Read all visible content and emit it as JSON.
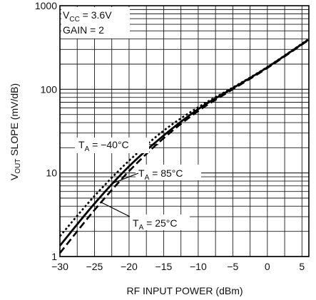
{
  "chart_data": {
    "type": "line",
    "title": "",
    "xlabel": "RF INPUT POWER (dBm)",
    "ylabel": {
      "v": "V",
      "sub": "OUT",
      "rest": " SLOPE (mV/dB)"
    },
    "xlim": [
      -30,
      6
    ],
    "ylim": [
      1,
      1000
    ],
    "y_scale": "log",
    "grid": true,
    "x_ticks": [
      -30,
      -25,
      -20,
      -15,
      -10,
      -5,
      0,
      5
    ],
    "x_tick_labels": [
      "−30",
      "−25",
      "−20",
      "−15",
      "−10",
      "−5",
      "0",
      "5"
    ],
    "y_tick_labels": [
      {
        "value": 1,
        "label": "1"
      },
      {
        "value": 10,
        "label": "10"
      },
      {
        "value": 100,
        "label": "100"
      },
      {
        "value": 1000,
        "label": "1000"
      }
    ],
    "conditions": [
      {
        "v": "V",
        "sub": "CC",
        "rest": " = 3.6V"
      },
      {
        "v": "GAIN = 2",
        "sub": "",
        "rest": ""
      }
    ],
    "series": [
      {
        "name": "T_A = −40°C",
        "label_parts": {
          "v": "T",
          "sub": "A",
          "rest": " = −40°C"
        },
        "style": "dotted",
        "x": [
          -30,
          -25,
          -20,
          -15,
          -10,
          -5,
          0,
          5.9
        ],
        "y": [
          1.75,
          5.3,
          14,
          32,
          61,
          105,
          185,
          395
        ]
      },
      {
        "name": "T_A = 25°C",
        "label_parts": {
          "v": "T",
          "sub": "A",
          "rest": " = 25°C"
        },
        "style": "solid",
        "x": [
          -30,
          -25,
          -20,
          -15,
          -10,
          -5,
          0,
          5.9
        ],
        "y": [
          1.35,
          4.3,
          12,
          28,
          58,
          103,
          183,
          390
        ]
      },
      {
        "name": "T_A = 85°C",
        "label_parts": {
          "v": "T",
          "sub": "A",
          "rest": " = 85°C"
        },
        "style": "dashed",
        "x": [
          -30,
          -25,
          -20,
          -15,
          -10,
          -5,
          0,
          5.9
        ],
        "y": [
          1.1,
          3.6,
          10.5,
          26,
          55,
          100,
          180,
          385
        ]
      }
    ]
  }
}
